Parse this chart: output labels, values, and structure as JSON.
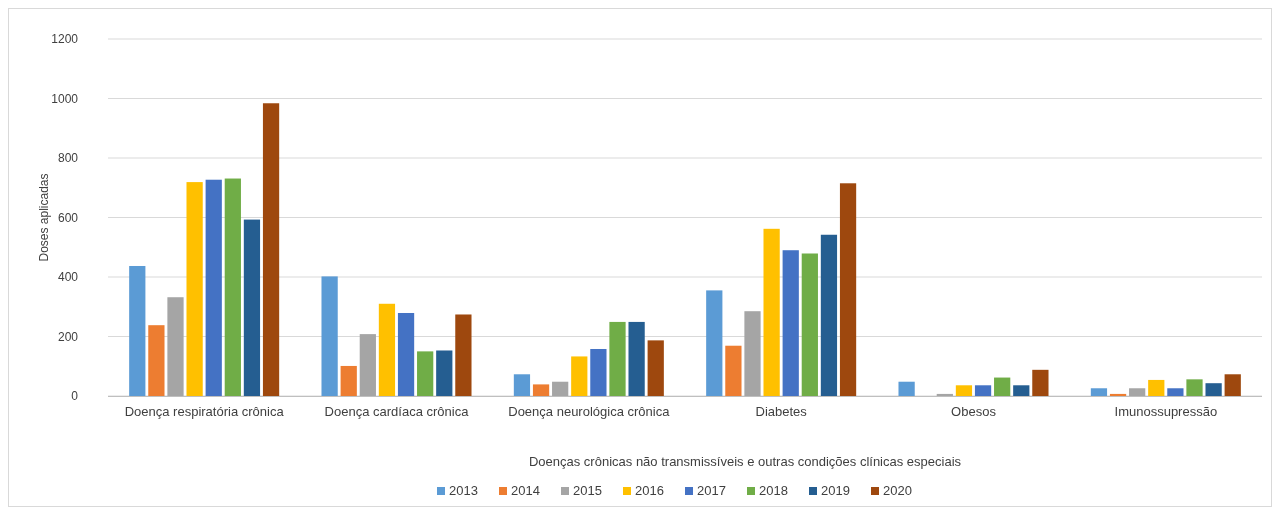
{
  "chart_data": {
    "type": "bar",
    "xlabel": "Doenças crônicas não transmissíveis e outras condições clínicas especiais",
    "ylabel": "Doses aplicadas",
    "categories": [
      "Doença respiratória crônica",
      "Doença cardíaca crônica",
      "Doença neurológica crônica",
      "Diabetes",
      "Obesos",
      "Imunossupressão"
    ],
    "series": [
      {
        "name": "2013",
        "color": "#5b9bd5",
        "values": [
          437,
          402,
          73,
          355,
          48,
          26
        ]
      },
      {
        "name": "2014",
        "color": "#ed7d31",
        "values": [
          238,
          101,
          39,
          169,
          null,
          7
        ]
      },
      {
        "name": "2015",
        "color": "#a5a5a5",
        "values": [
          332,
          208,
          48,
          285,
          7,
          26
        ]
      },
      {
        "name": "2016",
        "color": "#ffc000",
        "values": [
          719,
          310,
          133,
          562,
          36,
          54
        ]
      },
      {
        "name": "2017",
        "color": "#4472c4",
        "values": [
          727,
          279,
          158,
          490,
          36,
          26
        ]
      },
      {
        "name": "2018",
        "color": "#70ad47",
        "values": [
          731,
          150,
          249,
          479,
          62,
          56
        ]
      },
      {
        "name": "2019",
        "color": "#255e91",
        "values": [
          593,
          153,
          249,
          542,
          36,
          43
        ]
      },
      {
        "name": "2020",
        "color": "#9e480e",
        "values": [
          984,
          274,
          187,
          715,
          88,
          73
        ]
      }
    ],
    "ylim": [
      0,
      1200
    ],
    "yticks": [
      0,
      200,
      400,
      600,
      800,
      1000,
      1200
    ],
    "grid": "y",
    "legend": "bottom"
  }
}
